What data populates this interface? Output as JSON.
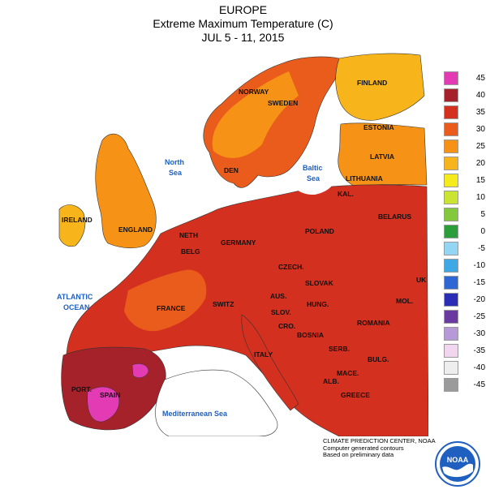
{
  "header": {
    "region": "EUROPE",
    "product": "Extreme Maximum Temperature (C)",
    "period": "JUL 5 - 11, 2015"
  },
  "map": {
    "countries": {
      "norway": "NORWAY",
      "sweden": "SWEDEN",
      "finland": "FINLAND",
      "estonia": "ESTONIA",
      "latvia": "LATVIA",
      "lithuania": "LITHUANIA",
      "kal": "KAL.",
      "belarus": "BELARUS",
      "den": "DEN",
      "ireland": "IRELAND",
      "england": "ENGLAND",
      "neth": "NETH",
      "belg": "BELG",
      "germany": "GERMANY",
      "poland": "POLAND",
      "czech": "CZECH.",
      "slovak": "SLOVAK",
      "france": "FRANCE",
      "switz": "SWITZ",
      "aus": "AUS.",
      "hung": "HUNG.",
      "romania": "ROMANIA",
      "mol": "MOL.",
      "uk": "UK",
      "slov": "SLOV.",
      "cro": "CRO.",
      "bosnia": "BOSNIA",
      "serb": "SERB.",
      "bulg": "BULG.",
      "italy": "ITALY",
      "mace": "MACE.",
      "alb": "ALB.",
      "greece": "GREECE",
      "port": "PORT.",
      "spain": "SPAIN"
    },
    "seas": {
      "north_sea_1": "North",
      "north_sea_2": "Sea",
      "baltic_sea_1": "Baltic",
      "baltic_sea_2": "Sea",
      "atlantic_1": "ATLANTIC",
      "atlantic_2": "OCEAN",
      "mediterranean": "Mediterranean Sea"
    }
  },
  "legend": [
    {
      "label": "45",
      "color": "#e23bb4"
    },
    {
      "label": "40",
      "color": "#a5222a"
    },
    {
      "label": "35",
      "color": "#d3301f"
    },
    {
      "label": "30",
      "color": "#ea5c1c"
    },
    {
      "label": "25",
      "color": "#f69216"
    },
    {
      "label": "20",
      "color": "#f8b51b"
    },
    {
      "label": "15",
      "color": "#f4ea1c"
    },
    {
      "label": "10",
      "color": "#cbe432"
    },
    {
      "label": "5",
      "color": "#84c83b"
    },
    {
      "label": "0",
      "color": "#2b9d3a"
    },
    {
      "label": "-5",
      "color": "#93d5f3"
    },
    {
      "label": "-10",
      "color": "#3ea8e6"
    },
    {
      "label": "-15",
      "color": "#2e66d4"
    },
    {
      "label": "-20",
      "color": "#2b2db7"
    },
    {
      "label": "-25",
      "color": "#6a3aa0"
    },
    {
      "label": "-30",
      "color": "#b69ad8"
    },
    {
      "label": "-35",
      "color": "#f2d6f0"
    },
    {
      "label": "-40",
      "color": "#eeeeee"
    },
    {
      "label": "-45",
      "color": "#9b9b9b"
    }
  ],
  "footer": {
    "line1": "CLIMATE PREDICTION CENTER, NOAA",
    "line2": "Computer generated contours",
    "line3": "Based on preliminary data",
    "logo_text": "NOAA"
  }
}
